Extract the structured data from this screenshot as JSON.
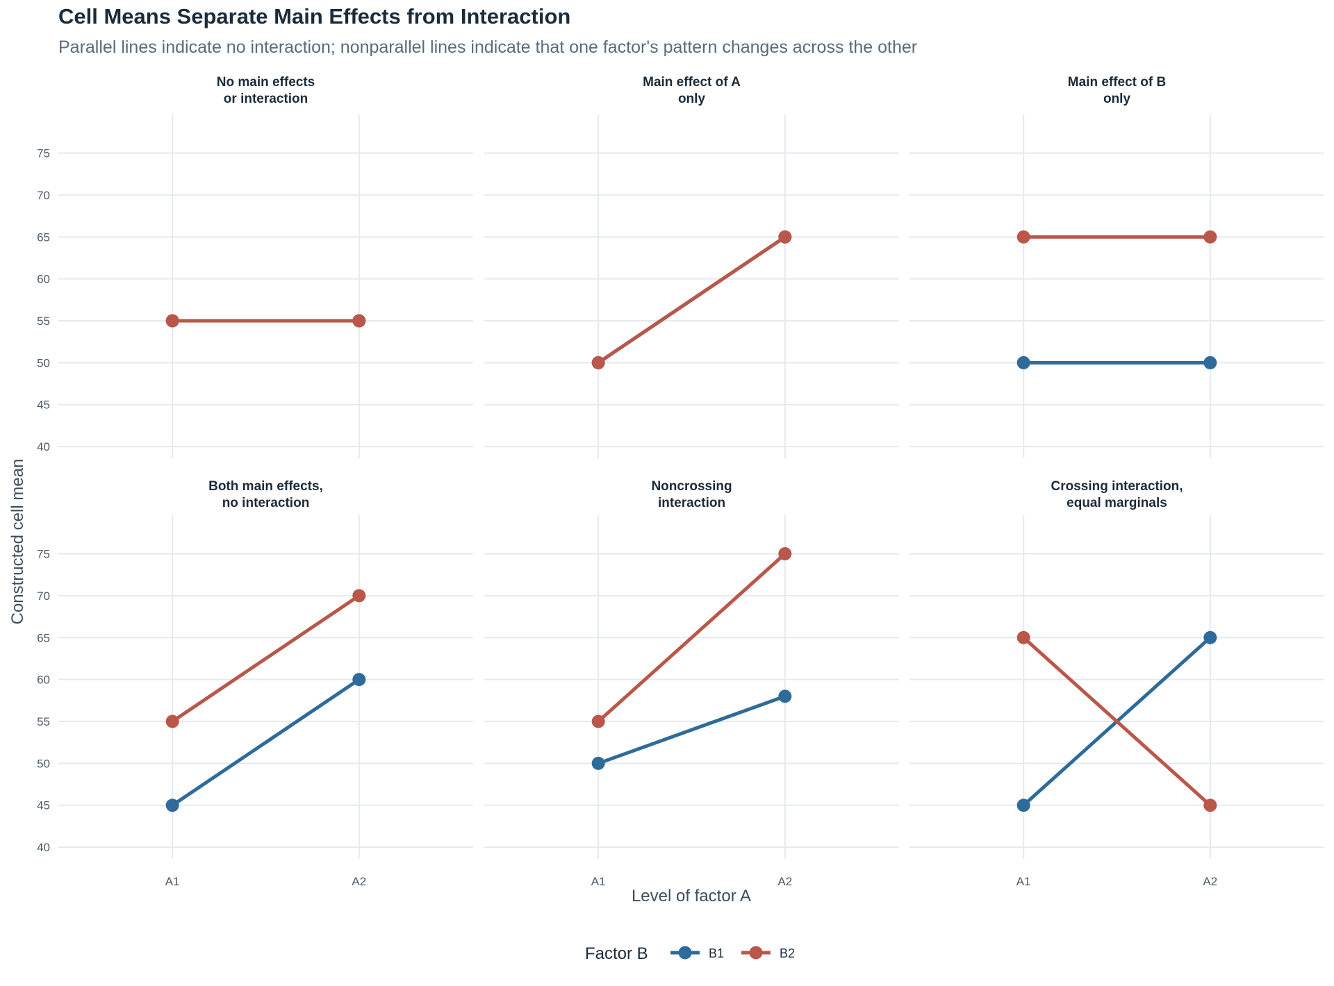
{
  "chart_data": {
    "type": "line",
    "title": "Cell Means Separate Main Effects from Interaction",
    "subtitle": "Parallel lines indicate no interaction; nonparallel lines indicate that one factor's pattern changes across the other",
    "xlabel": "Level of factor A",
    "ylabel": "Constructed cell mean",
    "categories": [
      "A1",
      "A2"
    ],
    "yticks": [
      40,
      45,
      50,
      55,
      60,
      65,
      70,
      75
    ],
    "ylim": [
      38.6,
      79.6
    ],
    "grid": true,
    "legend": {
      "title": "Factor B",
      "position": "bottom",
      "entries": [
        "B1",
        "B2"
      ]
    },
    "colors": {
      "B1": "#2e6b9a",
      "B2": "#b9574a"
    },
    "panels": [
      {
        "title_line1": "No main effects",
        "title_line2": "or interaction",
        "series": [
          {
            "name": "B1",
            "values": [
              55,
              55
            ]
          },
          {
            "name": "B2",
            "values": [
              55,
              55
            ]
          }
        ]
      },
      {
        "title_line1": "Main effect of A",
        "title_line2": "only",
        "series": [
          {
            "name": "B1",
            "values": [
              50,
              65
            ]
          },
          {
            "name": "B2",
            "values": [
              50,
              65
            ]
          }
        ]
      },
      {
        "title_line1": "Main effect of B",
        "title_line2": "only",
        "series": [
          {
            "name": "B1",
            "values": [
              50,
              50
            ]
          },
          {
            "name": "B2",
            "values": [
              65,
              65
            ]
          }
        ]
      },
      {
        "title_line1": "Both main effects,",
        "title_line2": "no interaction",
        "series": [
          {
            "name": "B1",
            "values": [
              45,
              60
            ]
          },
          {
            "name": "B2",
            "values": [
              55,
              70
            ]
          }
        ]
      },
      {
        "title_line1": "Noncrossing",
        "title_line2": "interaction",
        "series": [
          {
            "name": "B1",
            "values": [
              50,
              58
            ]
          },
          {
            "name": "B2",
            "values": [
              55,
              75
            ]
          }
        ]
      },
      {
        "title_line1": "Crossing interaction,",
        "title_line2": "equal marginals",
        "series": [
          {
            "name": "B1",
            "values": [
              45,
              65
            ]
          },
          {
            "name": "B2",
            "values": [
              65,
              45
            ]
          }
        ]
      }
    ]
  }
}
